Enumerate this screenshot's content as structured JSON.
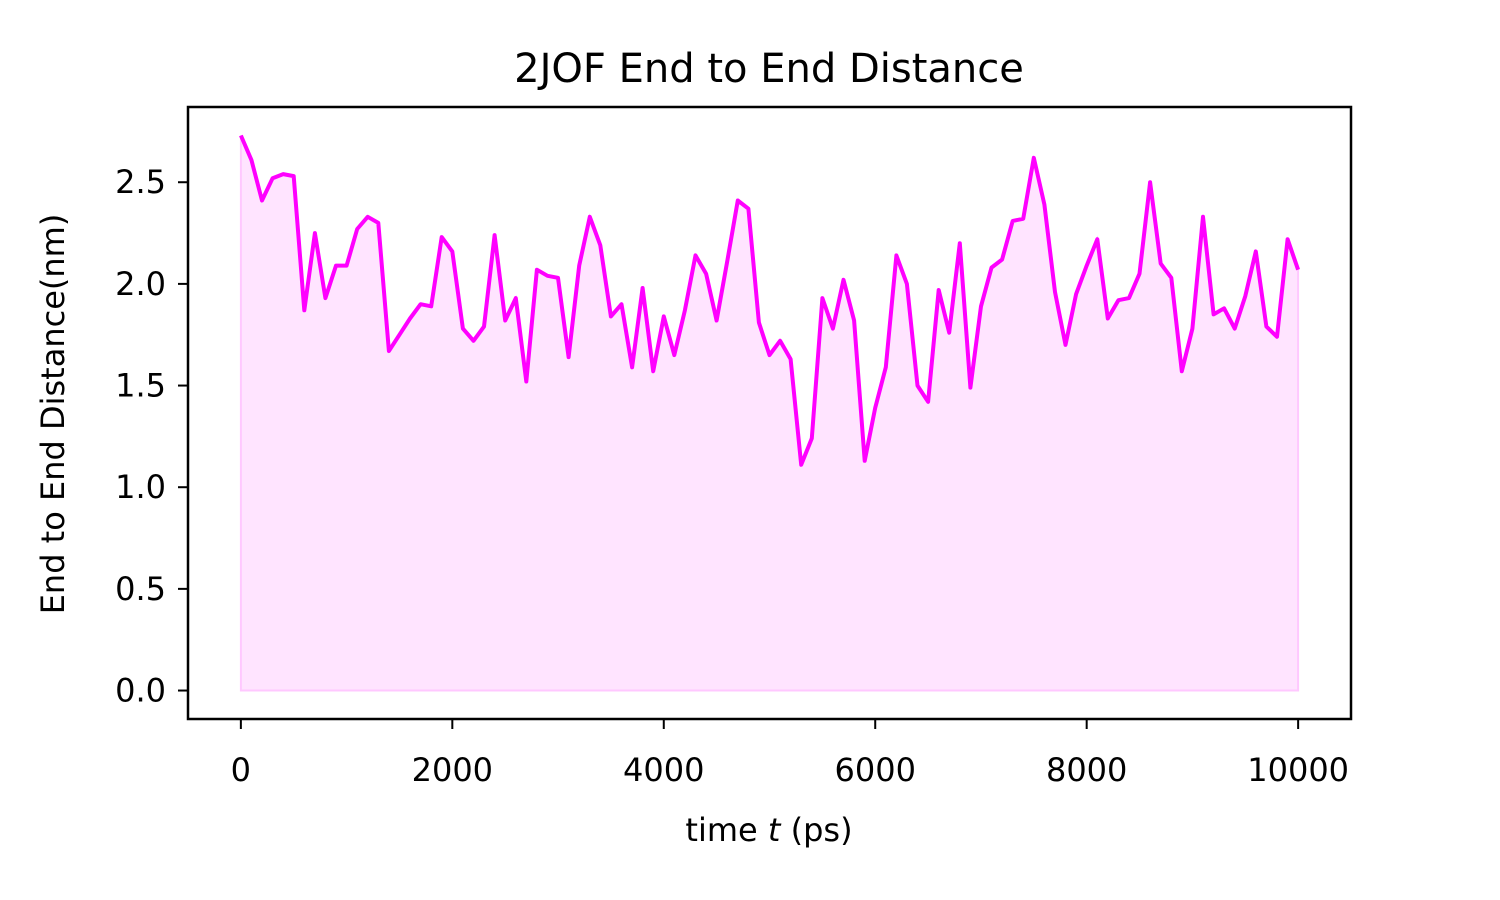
{
  "chart_data": {
    "type": "area",
    "title": "2JOF End to End Distance",
    "xlabel_prefix": "time ",
    "xlabel_var": "t",
    "xlabel_suffix": " (ps)",
    "ylabel": "End to End Distance(nm)",
    "xlim": [
      -500,
      10500
    ],
    "ylim": [
      -0.14,
      2.87
    ],
    "xticks": [
      0,
      2000,
      4000,
      6000,
      8000,
      10000
    ],
    "xtick_labels": [
      "0",
      "2000",
      "4000",
      "6000",
      "8000",
      "10000"
    ],
    "yticks": [
      0.0,
      0.5,
      1.0,
      1.5,
      2.0,
      2.5
    ],
    "ytick_labels": [
      "0.0",
      "0.5",
      "1.0",
      "1.5",
      "2.0",
      "2.5"
    ],
    "grid": false,
    "line_color": "#ff00ff",
    "fill_color": "#ffe4ff",
    "series": [
      {
        "x": [
          0,
          100,
          200,
          300,
          400,
          500,
          600,
          700,
          800,
          900,
          1000,
          1100,
          1200,
          1300,
          1400,
          1500,
          1600,
          1700,
          1800,
          1900,
          2000,
          2100,
          2200,
          2300,
          2400,
          2500,
          2600,
          2700,
          2800,
          2900,
          3000,
          3100,
          3200,
          3300,
          3400,
          3500,
          3600,
          3700,
          3800,
          3900,
          4000,
          4100,
          4200,
          4300,
          4400,
          4500,
          4600,
          4700,
          4800,
          4900,
          5000,
          5100,
          5200,
          5300,
          5400,
          5500,
          5600,
          5700,
          5800,
          5900,
          6000,
          6100,
          6200,
          6300,
          6400,
          6500,
          6600,
          6700,
          6800,
          6900,
          7000,
          7100,
          7200,
          7300,
          7400,
          7500,
          7600,
          7700,
          7800,
          7900,
          8000,
          8100,
          8200,
          8300,
          8400,
          8500,
          8600,
          8700,
          8800,
          8900,
          9000,
          9100,
          9200,
          9300,
          9400,
          9500,
          9600,
          9700,
          9800,
          9900,
          10000
        ],
        "y": [
          2.73,
          2.61,
          2.41,
          2.52,
          2.54,
          2.53,
          1.87,
          2.25,
          1.93,
          2.09,
          2.09,
          2.27,
          2.33,
          2.3,
          1.67,
          1.75,
          1.83,
          1.9,
          1.89,
          2.23,
          2.16,
          1.78,
          1.72,
          1.79,
          2.24,
          1.82,
          1.93,
          1.52,
          2.07,
          2.04,
          2.03,
          1.64,
          2.09,
          2.33,
          2.19,
          1.84,
          1.9,
          1.59,
          1.98,
          1.57,
          1.84,
          1.65,
          1.87,
          2.14,
          2.05,
          1.82,
          2.11,
          2.41,
          2.37,
          1.81,
          1.65,
          1.72,
          1.63,
          1.11,
          1.24,
          1.93,
          1.78,
          2.02,
          1.82,
          1.13,
          1.39,
          1.59,
          2.14,
          2.0,
          1.5,
          1.42,
          1.97,
          1.76,
          2.2,
          1.49,
          1.89,
          2.08,
          2.12,
          2.31,
          2.32,
          2.62,
          2.39,
          1.96,
          1.7,
          1.95,
          2.09,
          2.22,
          1.83,
          1.92,
          1.93,
          2.05,
          2.5,
          2.1,
          2.03,
          1.57,
          1.78,
          2.33,
          1.85,
          1.88,
          1.78,
          1.94,
          2.16,
          1.79,
          1.74,
          2.22,
          2.07
        ]
      }
    ]
  }
}
